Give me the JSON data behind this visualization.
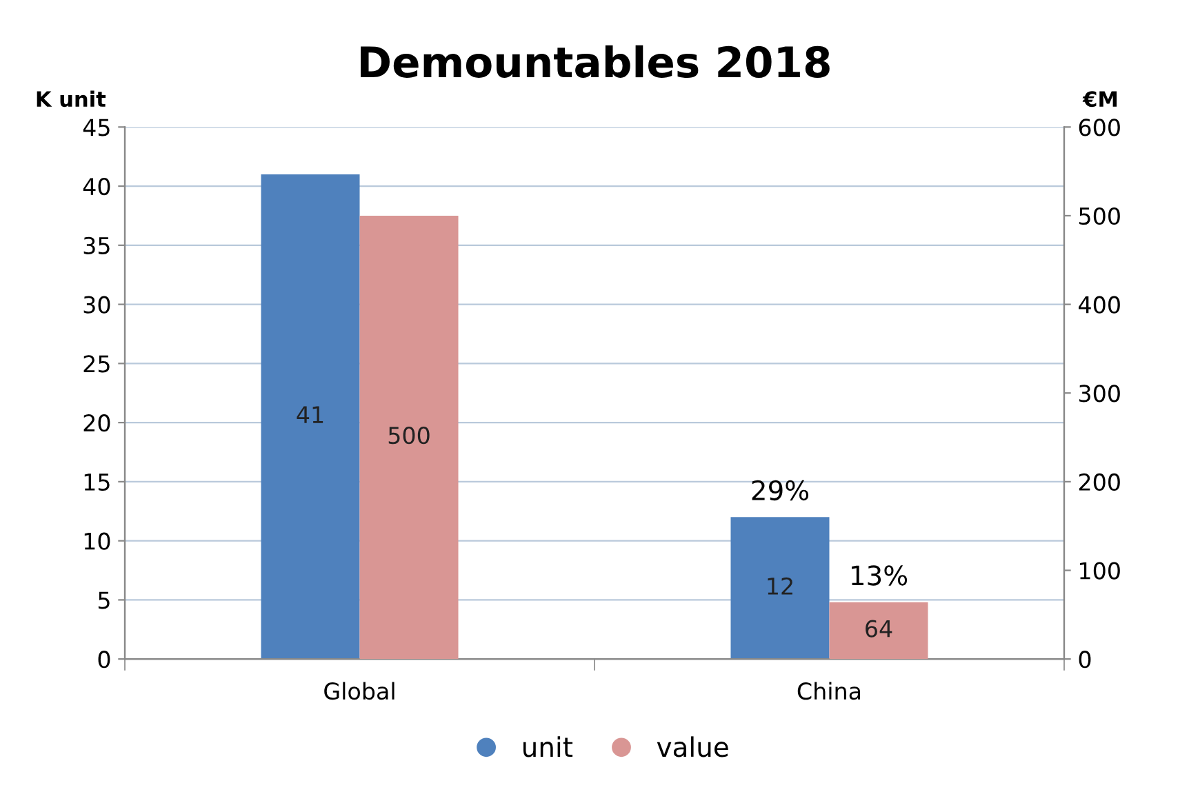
{
  "chart_data": {
    "type": "bar",
    "title": "Demountables 2018",
    "ylabel": "K unit",
    "y2label": "€M",
    "categories": [
      "Global",
      "China"
    ],
    "series": [
      {
        "name": "unit",
        "color": "#4f81bd",
        "values": [
          41,
          12
        ]
      },
      {
        "name": "value",
        "color": "#d99694",
        "values": [
          500,
          64
        ],
        "axis": "y2"
      }
    ],
    "ylim": [
      0,
      45
    ],
    "yticks": [
      0,
      5,
      10,
      15,
      20,
      25,
      30,
      35,
      40,
      45
    ],
    "y2lim": [
      0,
      600
    ],
    "y2ticks": [
      0,
      100,
      200,
      300,
      400,
      500,
      600
    ],
    "data_labels": true,
    "annotations": [
      {
        "text": "29%",
        "x": "China",
        "y": 12
      },
      {
        "text": "13%",
        "x": "China",
        "y": 4.8
      }
    ],
    "grid": "y",
    "legend": "bottom"
  }
}
